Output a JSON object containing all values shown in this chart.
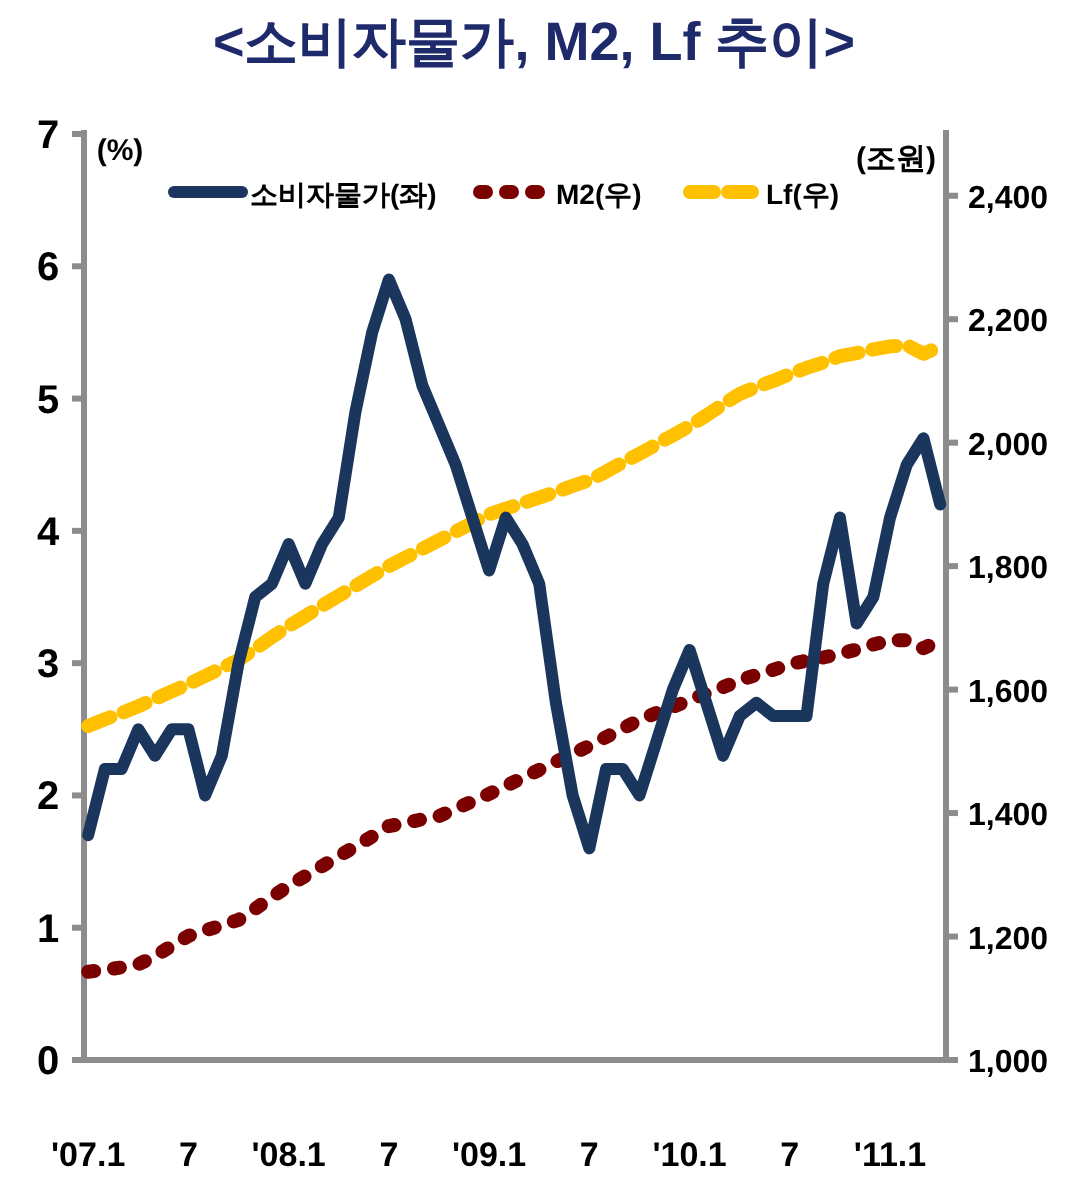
{
  "chart_data": {
    "type": "line",
    "title": "<소비자물가, M2, Lf 추이>",
    "ylabel": "(%)",
    "y2label": "(조원)",
    "legend": "top",
    "categories": [
      "'07.1",
      null,
      null,
      null,
      null,
      null,
      "7",
      null,
      null,
      null,
      null,
      null,
      "'08.1",
      null,
      null,
      null,
      null,
      null,
      "7",
      null,
      null,
      null,
      null,
      null,
      "'09.1",
      null,
      null,
      null,
      null,
      null,
      "7",
      null,
      null,
      null,
      null,
      null,
      "'10.1",
      null,
      null,
      null,
      null,
      null,
      "7",
      null,
      null,
      null,
      null,
      null,
      "'11.1",
      null,
      null,
      null
    ],
    "ylim": [
      0,
      7
    ],
    "yticks": [
      0,
      1,
      2,
      3,
      4,
      5,
      6,
      7
    ],
    "y2lim": [
      1000,
      2500
    ],
    "y2ticks": [
      {
        "value": 1000,
        "label": "1,000"
      },
      {
        "value": 1200,
        "label": "1,200"
      },
      {
        "value": 1400,
        "label": "1,400"
      },
      {
        "value": 1600,
        "label": "1,600"
      },
      {
        "value": 1800,
        "label": "1,800"
      },
      {
        "value": 2000,
        "label": "2,000"
      },
      {
        "value": 2200,
        "label": "2,200"
      },
      {
        "value": 2400,
        "label": "2,400"
      }
    ],
    "series": [
      {
        "name": "소비자물가(좌)",
        "color": "#1b365d",
        "line_style": "solid",
        "values": [
          1.7,
          2.2,
          2.2,
          2.5,
          2.3,
          2.5,
          2.5,
          2.0,
          2.3,
          3.0,
          3.5,
          3.6,
          3.9,
          3.6,
          3.9,
          4.1,
          4.9,
          5.5,
          5.9,
          5.6,
          5.1,
          4.8,
          4.5,
          4.1,
          3.7,
          4.1,
          3.9,
          3.6,
          2.7,
          2.0,
          1.6,
          2.2,
          2.2,
          2.0,
          2.4,
          2.8,
          3.1,
          2.7,
          2.3,
          2.6,
          2.7,
          2.6,
          2.6,
          2.6,
          3.6,
          4.1,
          3.3,
          3.5,
          4.1,
          4.5,
          4.7,
          4.2
        ]
      },
      {
        "name": "M2(우)",
        "color": "#7b0000",
        "line_style": "dotted",
        "axis": "y2",
        "values": [
          1143,
          1146,
          1150,
          1155,
          1168,
          1185,
          1201,
          1210,
          1218,
          1227,
          1245,
          1264,
          1282,
          1298,
          1314,
          1330,
          1346,
          1362,
          1379,
          1384,
          1390,
          1395,
          1407,
          1419,
          1431,
          1444,
          1457,
          1470,
          1483,
          1496,
          1509,
          1523,
          1537,
          1551,
          1562,
          1572,
          1583,
          1594,
          1604,
          1615,
          1624,
          1632,
          1641,
          1647,
          1652,
          1658,
          1665,
          1673,
          1680,
          1680,
          1667,
          1680
        ]
      },
      {
        "name": "Lf(우)",
        "color": "#ffc000",
        "line_style": "dashed",
        "axis": "y2",
        "values": [
          1541,
          1552,
          1562,
          1573,
          1585,
          1597,
          1609,
          1622,
          1635,
          1648,
          1666,
          1685,
          1703,
          1719,
          1736,
          1752,
          1768,
          1784,
          1800,
          1814,
          1828,
          1842,
          1856,
          1870,
          1884,
          1893,
          1902,
          1911,
          1920,
          1930,
          1939,
          1953,
          1968,
          1982,
          1997,
          2012,
          2027,
          2044,
          2062,
          2079,
          2090,
          2100,
          2111,
          2121,
          2130,
          2140,
          2145,
          2151,
          2156,
          2158,
          2144,
          2156
        ]
      }
    ]
  }
}
